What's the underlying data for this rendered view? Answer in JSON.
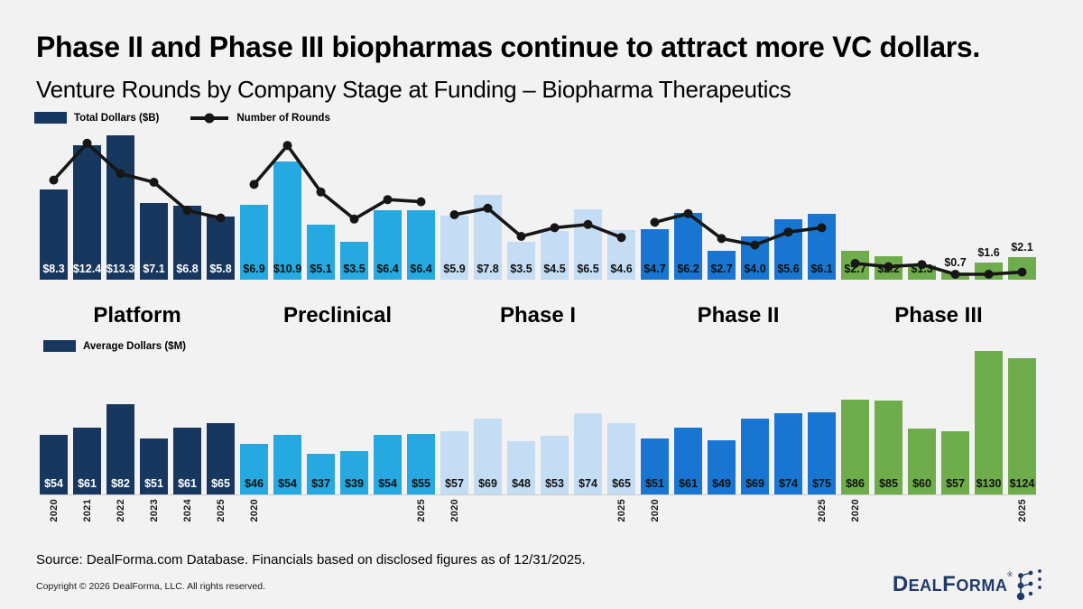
{
  "header": {
    "title": "Phase II and Phase III biopharmas continue to attract more VC dollars.",
    "subtitle": "Venture Rounds by Company Stage at Funding – Biopharma Therapeutics"
  },
  "legend_top": {
    "bars_label": "Total Dollars ($B)",
    "line_label": "Number of Rounds"
  },
  "legend_bottom": {
    "bars_label": "Average Dollars ($M)"
  },
  "stages": [
    "Platform",
    "Preclinical",
    "Phase I",
    "Phase II",
    "Phase III"
  ],
  "years": [
    "2020",
    "2021",
    "2022",
    "2023",
    "2024",
    "2025"
  ],
  "colors": {
    "platform": "#17375E",
    "preclinical": "#25A9E0",
    "phase1": "#C4DCF4",
    "phase2": "#1876D2",
    "phase3": "#6FAC4C",
    "line": "#161616",
    "background": "#F2F2F2",
    "label_on_dark": "#FFFFFF",
    "label_on_light": "#111111"
  },
  "chart_data": [
    {
      "type": "bar",
      "title": "Total Dollars ($B) with Number of Rounds line overlay",
      "ylabel": "Total Dollars ($B)",
      "categories": [
        "2020",
        "2021",
        "2022",
        "2023",
        "2024",
        "2025"
      ],
      "grid": false,
      "legend_position": "top-left",
      "groups": [
        {
          "stage": "Platform",
          "color": "#17375E",
          "label_color": "#FFFFFF",
          "values": [
            8.3,
            12.4,
            13.3,
            7.1,
            6.8,
            5.8
          ],
          "labels": [
            "$8.3",
            "$12.4",
            "$13.3",
            "$7.1",
            "$6.8",
            "$5.8"
          ],
          "labels_above": [
            false,
            false,
            false,
            false,
            false,
            false
          ]
        },
        {
          "stage": "Preclinical",
          "color": "#25A9E0",
          "label_color": "#111111",
          "values": [
            6.9,
            10.9,
            5.1,
            3.5,
            6.4,
            6.4
          ],
          "labels": [
            "$6.9",
            "$10.9",
            "$5.1",
            "$3.5",
            "$6.4",
            "$6.4"
          ],
          "labels_above": [
            false,
            false,
            false,
            false,
            false,
            false
          ]
        },
        {
          "stage": "Phase I",
          "color": "#C4DCF4",
          "label_color": "#111111",
          "values": [
            5.9,
            7.8,
            3.5,
            4.5,
            6.5,
            4.6
          ],
          "labels": [
            "$5.9",
            "$7.8",
            "$3.5",
            "$4.5",
            "$6.5",
            "$4.6"
          ],
          "labels_above": [
            false,
            false,
            false,
            false,
            false,
            false
          ]
        },
        {
          "stage": "Phase II",
          "color": "#1876D2",
          "label_color": "#111111",
          "values": [
            4.7,
            6.2,
            2.7,
            4.0,
            5.6,
            6.1
          ],
          "labels": [
            "$4.7",
            "$6.2",
            "$2.7",
            "$4.0",
            "$5.6",
            "$6.1"
          ],
          "labels_above": [
            false,
            false,
            false,
            false,
            false,
            false
          ]
        },
        {
          "stage": "Phase III",
          "color": "#6FAC4C",
          "label_color": "#111111",
          "values": [
            2.7,
            2.2,
            1.3,
            0.7,
            1.6,
            2.1
          ],
          "labels": [
            "$2.7",
            "$2.2",
            "$1.3",
            "$0.7",
            "$1.6",
            "$2.1"
          ],
          "labels_above": [
            false,
            false,
            false,
            true,
            true,
            true
          ]
        }
      ],
      "line": {
        "name": "Number of Rounds",
        "note": "No numeric axis shown for rounds; values are visual estimates mapped onto the $B axis scale",
        "groups_values": [
          [
            9.2,
            12.6,
            9.8,
            9.0,
            6.4,
            5.7
          ],
          [
            8.8,
            12.4,
            8.1,
            5.6,
            7.4,
            7.2
          ],
          [
            6.0,
            6.6,
            4.0,
            4.8,
            5.1,
            3.9
          ],
          [
            5.3,
            6.1,
            3.8,
            3.2,
            4.4,
            4.8
          ],
          [
            1.5,
            1.2,
            1.4,
            0.5,
            0.5,
            0.7
          ]
        ]
      }
    },
    {
      "type": "bar",
      "title": "Average Dollars ($M)",
      "ylabel": "Average Dollars ($M)",
      "categories": [
        "2020",
        "2021",
        "2022",
        "2023",
        "2024",
        "2025"
      ],
      "grid": false,
      "groups": [
        {
          "stage": "Platform",
          "color": "#17375E",
          "label_color": "#FFFFFF",
          "values": [
            54,
            61,
            82,
            51,
            61,
            65
          ],
          "labels": [
            "$54",
            "$61",
            "$82",
            "$51",
            "$61",
            "$65"
          ],
          "axis_years": [
            "2020",
            "2021",
            "2022",
            "2023",
            "2024",
            "2025"
          ]
        },
        {
          "stage": "Preclinical",
          "color": "#25A9E0",
          "label_color": "#111111",
          "values": [
            46,
            54,
            37,
            39,
            54,
            55
          ],
          "labels": [
            "$46",
            "$54",
            "$37",
            "$39",
            "$54",
            "$55"
          ],
          "axis_years": [
            "2020",
            "",
            "",
            "",
            "",
            "2025"
          ]
        },
        {
          "stage": "Phase I",
          "color": "#C4DCF4",
          "label_color": "#111111",
          "values": [
            57,
            69,
            48,
            53,
            74,
            65
          ],
          "labels": [
            "$57",
            "$69",
            "$48",
            "$53",
            "$74",
            "$65"
          ],
          "axis_years": [
            "2020",
            "",
            "",
            "",
            "",
            "2025"
          ]
        },
        {
          "stage": "Phase II",
          "color": "#1876D2",
          "label_color": "#111111",
          "values": [
            51,
            61,
            49,
            69,
            74,
            75
          ],
          "labels": [
            "$51",
            "$61",
            "$49",
            "$69",
            "$74",
            "$75"
          ],
          "axis_years": [
            "2020",
            "",
            "",
            "",
            "",
            "2025"
          ]
        },
        {
          "stage": "Phase III",
          "color": "#6FAC4C",
          "label_color": "#111111",
          "values": [
            86,
            85,
            60,
            57,
            130,
            124
          ],
          "labels": [
            "$86",
            "$85",
            "$60",
            "$57",
            "$130",
            "$124"
          ],
          "axis_years": [
            "2020",
            "",
            "",
            "",
            "",
            "2025"
          ]
        }
      ]
    }
  ],
  "footer": {
    "source": "Source: DealForma.com Database. Financials based on disclosed figures as of 12/31/2025.",
    "copyright": "Copyright © 2026 DealForma, LLC. All rights reserved."
  },
  "logo": {
    "part1": "D",
    "part2": "EAL",
    "part3": "F",
    "part4": "ORMA",
    "registered": "®"
  }
}
